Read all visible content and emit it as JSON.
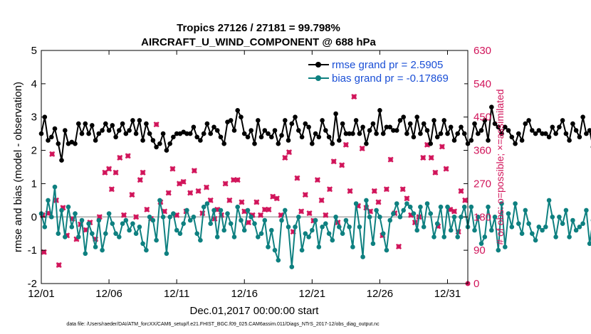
{
  "chart_data": {
    "type": "line",
    "title": "Tropics 27126 / 27181 = 99.798%",
    "subtitle": "AIRCRAFT_U_WIND_COMPONENT @ 688 hPa",
    "xlabel": "Dec.01,2017 00:00:00 start",
    "ylabel": "rmse and bias (model - observation)",
    "y2label": "# of obs: o=possible; ×=assimilated",
    "footer": "data file: /Users/raeder/DAI/ATM_forcXX/CAM6_setup/f.e21.FHIST_BGC.f09_025.CAM6assim.011/Diags_NTrS_2017-12/obs_diag_output.nc",
    "xlim": [
      0,
      31.5
    ],
    "ylim": [
      -2,
      5
    ],
    "y2lim": [
      0,
      630
    ],
    "xticks": [
      {
        "value": 0,
        "label": "12/01"
      },
      {
        "value": 5,
        "label": "12/06"
      },
      {
        "value": 10,
        "label": "12/11"
      },
      {
        "value": 15,
        "label": "12/16"
      },
      {
        "value": 20,
        "label": "12/21"
      },
      {
        "value": 25,
        "label": "12/26"
      },
      {
        "value": 30,
        "label": "12/31"
      }
    ],
    "yticks": [
      -2,
      -1,
      0,
      1,
      2,
      3,
      4,
      5
    ],
    "y2ticks": [
      0,
      90,
      180,
      270,
      360,
      450,
      540,
      630
    ],
    "legend": {
      "position": "top-right"
    },
    "colors": {
      "rmse": "#000000",
      "bias": "#0e8080",
      "obs": "#d1145a",
      "zero": "#bbbbbb"
    },
    "step": 0.25,
    "series": [
      {
        "name": "rmse grand pr = 2.5905",
        "key": "rmse",
        "values": [
          2.5,
          3.0,
          2.3,
          2.4,
          2.65,
          2.2,
          1.7,
          2.6,
          2.2,
          2.25,
          2.2,
          2.8,
          2.5,
          2.8,
          2.5,
          2.75,
          2.3,
          2.5,
          2.6,
          2.8,
          2.6,
          2.75,
          2.4,
          2.6,
          2.8,
          2.5,
          2.6,
          2.9,
          2.5,
          2.9,
          2.3,
          2.8,
          2.5,
          2.3,
          2.1,
          2.2,
          2.5,
          2.0,
          2.2,
          2.4,
          2.5,
          2.5,
          2.55,
          2.5,
          2.5,
          2.7,
          2.4,
          2.3,
          2.5,
          2.8,
          2.5,
          2.7,
          2.6,
          2.4,
          2.2,
          2.85,
          2.9,
          2.6,
          3.2,
          3.0,
          2.5,
          2.4,
          2.6,
          2.2,
          2.9,
          2.4,
          2.6,
          2.5,
          2.4,
          2.6,
          2.2,
          2.45,
          2.9,
          2.3,
          2.8,
          3.0,
          2.6,
          2.4,
          2.8,
          2.7,
          2.2,
          2.5,
          2.4,
          2.9,
          2.6,
          2.4,
          2.2,
          3.1,
          2.3,
          2.8,
          2.5,
          2.5,
          2.5,
          2.9,
          2.5,
          2.7,
          2.2,
          2.6,
          2.8,
          2.5,
          3.2,
          2.5,
          2.7,
          2.7,
          2.6,
          2.6,
          2.9,
          3.0,
          2.5,
          2.8,
          2.4,
          3.0,
          2.5,
          2.8,
          2.6,
          2.2,
          2.9,
          2.4,
          2.5,
          2.9,
          2.5,
          2.7,
          2.3,
          2.5,
          2.7,
          2.5,
          2.2,
          2.3,
          2.8,
          2.5,
          2.6,
          2.9,
          2.3,
          3.3,
          2.8,
          2.7,
          2.5,
          2.7,
          2.6,
          2.4,
          2.2,
          2.5,
          2.3,
          2.8,
          2.9,
          2.6,
          2.5,
          2.6,
          2.5,
          2.5,
          2.4,
          2.7,
          2.5,
          2.7,
          2.9,
          2.5,
          2.3,
          2.8,
          2.6,
          2.4,
          3.0,
          2.5,
          2.6,
          2.1,
          2.2,
          2.3,
          2.5,
          2.9,
          2.5,
          3.2,
          2.5,
          2.5,
          2.4,
          2.8,
          2.2,
          2.5,
          2.3,
          2.4,
          2.8,
          2.6,
          2.4,
          2.2,
          2.5,
          2.9,
          2.6,
          2.8,
          2.7,
          2.6,
          2.8,
          2.9,
          2.5,
          2.7,
          2.6,
          2.7,
          3.0,
          2.7,
          2.5,
          2.7,
          2.8,
          2.4,
          2.2,
          2.7,
          2.5,
          2.8,
          2.9,
          2.7,
          2.4,
          2.6,
          2.6,
          2.9,
          2.4,
          2.2,
          2.5,
          2.2,
          2.5,
          2.8,
          3.0,
          2.6,
          2.5,
          2.3,
          2.5,
          2.7,
          2.4,
          2.6,
          2.8,
          2.5,
          2.2,
          2.4,
          2.7,
          2.6,
          2.4,
          2.3,
          2.6,
          2.1,
          2.4,
          2.3,
          2.7,
          2.5,
          2.3,
          2.1,
          3.4,
          2.5,
          3.1,
          2.9,
          2.7,
          2.5
        ]
      },
      {
        "name": "bias grand pr = -0.17869",
        "key": "bias",
        "values": [
          0.1,
          -0.3,
          0.5,
          0.0,
          0.9,
          -0.5,
          0.2,
          -0.6,
          0.3,
          -0.3,
          0.1,
          -0.6,
          -0.1,
          -1.1,
          -0.2,
          -0.5,
          -0.9,
          -0.1,
          -1.0,
          -0.5,
          0.1,
          -0.2,
          -0.5,
          -0.6,
          -0.2,
          -0.1,
          -0.4,
          -0.2,
          -0.5,
          -0.3,
          -0.8,
          -1.0,
          0.0,
          -0.1,
          -0.7,
          0.5,
          0.0,
          -1.1,
          0.0,
          0.1,
          -0.4,
          -0.5,
          -0.2,
          0.2,
          -0.1,
          0.0,
          -0.5,
          -0.7,
          0.3,
          0.4,
          -0.2,
          0.2,
          -0.6,
          0.2,
          -0.4,
          0.1,
          -0.2,
          -0.6,
          0.3,
          -0.1,
          -0.4,
          0.2,
          0.0,
          -0.2,
          -0.6,
          -0.5,
          -0.1,
          -0.9,
          -0.4,
          -1.0,
          -1.3,
          -0.1,
          0.2,
          -0.3,
          -1.5,
          -0.3,
          0.0,
          -1.0,
          -0.5,
          -0.6,
          -0.4,
          -0.1,
          -0.9,
          -0.3,
          -0.2,
          -0.5,
          -0.7,
          0.0,
          -0.3,
          -0.5,
          -0.1,
          -0.3,
          -0.9,
          0.4,
          -0.3,
          -1.2,
          0.5,
          0.0,
          -0.8,
          0.2,
          0.0,
          -0.5,
          -1.0,
          -0.1,
          0.1,
          0.4,
          0.0,
          0.2,
          0.4,
          0.3,
          0.1,
          -0.4,
          0.3,
          -0.3,
          0.4,
          0.1,
          -0.6,
          -0.2,
          0.3,
          -0.6,
          0.3,
          -0.4,
          0.0,
          -0.6,
          0.0,
          0.3,
          -0.3,
          0.3,
          -0.4,
          0.0,
          -0.8,
          -0.6,
          0.3,
          -0.4,
          0.0,
          -1.0,
          0.4,
          -0.9,
          0.1,
          -0.3,
          0.4,
          -0.2,
          -0.5,
          0.2,
          -0.2,
          -0.5,
          -0.7,
          -0.3,
          -0.4,
          -0.3,
          0.5,
          0.0,
          -0.6,
          0.0,
          -0.2,
          0.2,
          -0.6,
          -0.1,
          -0.4,
          -0.3,
          -0.2,
          0.2,
          -0.8,
          -0.1,
          -0.7,
          -0.1,
          0.1,
          1.3,
          0.3,
          -0.5,
          0.8,
          0.0,
          0.6,
          0.0,
          -0.4,
          0.0,
          -0.5,
          0.3,
          -0.2,
          -0.8,
          -0.5,
          0.4,
          0.0,
          -0.2,
          0.2,
          -0.2,
          0.4,
          -0.5,
          0.0,
          0.4,
          0.1,
          -0.6,
          0.0,
          -0.3,
          -0.2,
          0.0,
          -0.6,
          0.2,
          -0.3,
          0.5,
          -1.2,
          -1.3,
          -0.5,
          -1.2,
          -0.3,
          -0.8,
          -1.0,
          0.2,
          -0.1,
          0.3,
          0.0,
          -0.3,
          -0.2,
          -0.3,
          0.4,
          -0.6,
          -0.2,
          0.1,
          -0.3,
          -0.5,
          0.4,
          0.5,
          0.2,
          0.4,
          -0.3,
          0.0,
          0.5,
          0.3,
          -0.9,
          0.5,
          -0.3,
          -0.5,
          0.0,
          0.5,
          0.2,
          0.6,
          0.3,
          0.4,
          0.7,
          0.4,
          0.6,
          0.3,
          0.7,
          0.5,
          0.6
        ]
      }
    ],
    "obs_series": {
      "name": "assimilated",
      "x": [
        0.1,
        0.2,
        0.5,
        0.8,
        1.1,
        1.3,
        1.6,
        1.9,
        2.3,
        2.6,
        2.9,
        3.3,
        3.6,
        4.0,
        4.3,
        4.7,
        5.0,
        5.2,
        5.5,
        5.8,
        6.1,
        6.4,
        6.7,
        7.0,
        7.3,
        7.5,
        7.8,
        8.1,
        8.5,
        8.8,
        9.1,
        9.4,
        9.7,
        10.0,
        10.2,
        10.5,
        10.7,
        11.0,
        11.3,
        11.6,
        11.9,
        12.2,
        12.5,
        12.8,
        13.0,
        13.3,
        13.6,
        13.9,
        14.2,
        14.5,
        14.8,
        15.0,
        15.3,
        15.6,
        15.9,
        16.2,
        16.5,
        16.8,
        17.1,
        17.4,
        17.7,
        18.0,
        18.3,
        18.6,
        18.9,
        19.2,
        19.5,
        19.8,
        20.1,
        20.4,
        20.7,
        21.0,
        21.3,
        21.6,
        21.9,
        22.2,
        22.5,
        22.8,
        23.1,
        23.4,
        23.7,
        24.0,
        24.3,
        24.6,
        24.9,
        25.2,
        25.5,
        25.8,
        26.1,
        26.4,
        26.7,
        27.0,
        27.3,
        27.6,
        27.9,
        28.2,
        28.5,
        28.8,
        29.1,
        29.3,
        29.6,
        29.9,
        30.2,
        30.5,
        30.8,
        31.0,
        31.3
      ],
      "values": [
        185,
        85,
        190,
        350,
        225,
        50,
        205,
        130,
        175,
        120,
        160,
        145,
        165,
        120,
        180,
        300,
        310,
        255,
        300,
        340,
        185,
        345,
        240,
        180,
        280,
        300,
        200,
        175,
        430,
        220,
        195,
        245,
        310,
        185,
        270,
        275,
        195,
        245,
        305,
        250,
        190,
        260,
        225,
        175,
        200,
        185,
        270,
        225,
        280,
        280,
        220,
        195,
        165,
        185,
        220,
        185,
        200,
        200,
        235,
        230,
        185,
        340,
        355,
        140,
        285,
        195,
        240,
        190,
        170,
        280,
        225,
        185,
        255,
        330,
        165,
        320,
        375,
        250,
        505,
        210,
        365,
        205,
        195,
        250,
        220,
        130,
        255,
        335,
        190,
        100,
        255,
        230,
        185,
        165,
        180,
        340,
        375,
        340,
        300,
        155,
        370,
        310,
        200,
        195,
        140,
        250,
        225
      ]
    }
  }
}
